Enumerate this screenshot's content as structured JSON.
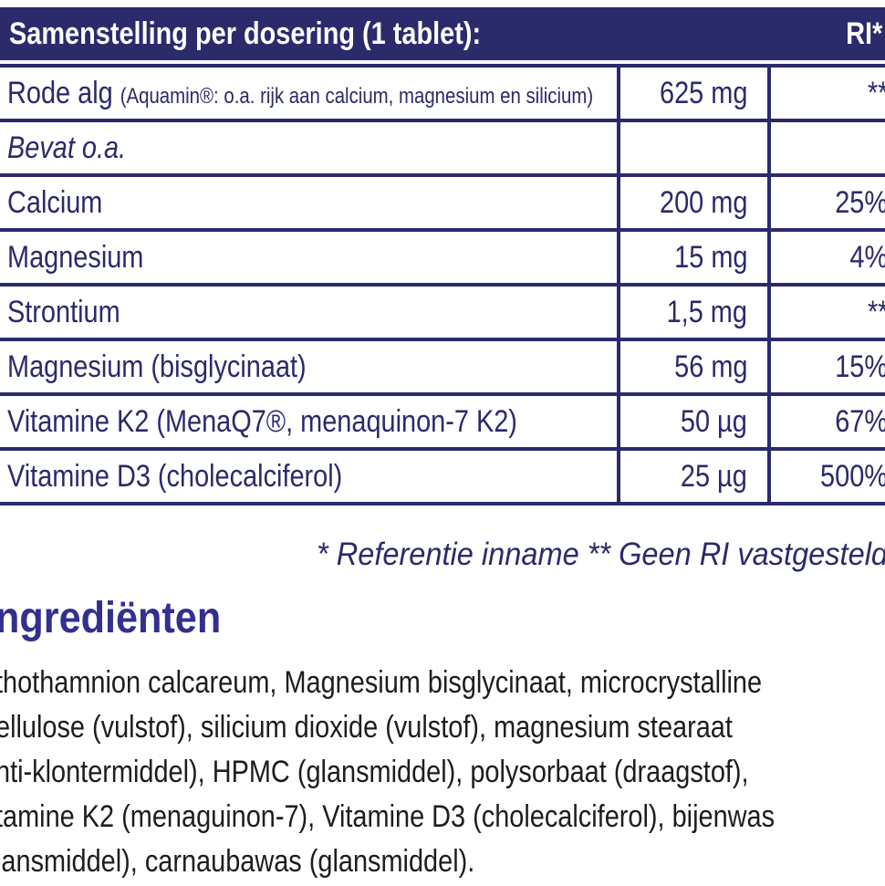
{
  "colors": {
    "indigo_band": "#2b2a6b",
    "table_border": "#2b2a6b",
    "table_text": "#2b2a6b",
    "heading_blue": "#32308f",
    "body_text": "#1d1d1b",
    "header_text": "#ffffff"
  },
  "table": {
    "header": {
      "title": "Samenstelling per dosering (1 tablet):",
      "ri_label": "RI*"
    },
    "rows": [
      {
        "name": "Rode alg ",
        "name_note": "(Aquamin®: o.a. rijk aan calcium, magnesium en silicium)",
        "amount": "625 mg",
        "ri": "**"
      },
      {
        "name": "Bevat o.a.",
        "name_note": "",
        "amount": "",
        "ri": ""
      },
      {
        "name": "Calcium",
        "name_note": "",
        "amount": "200 mg",
        "ri": "25%"
      },
      {
        "name": "Magnesium",
        "name_note": "",
        "amount": "15 mg",
        "ri": "4%"
      },
      {
        "name": "Strontium",
        "name_note": "",
        "amount": "1,5 mg",
        "ri": "**"
      },
      {
        "name": "Magnesium (bisglycinaat)",
        "name_note": "",
        "amount": "56 mg",
        "ri": "15%"
      },
      {
        "name": "Vitamine K2 (MenaQ7®, menaquinon-7 K2)",
        "name_note": "",
        "amount": "50 µg",
        "ri": "67%"
      },
      {
        "name": "Vitamine D3 (cholecalciferol)",
        "name_note": "",
        "amount": "25 µg",
        "ri": "500%"
      }
    ],
    "footnote": "* Referentie inname   ** Geen RI vastgesteld"
  },
  "ingredients": {
    "heading": "ngrediënten",
    "lines": [
      "thothamnion calcareum, Magnesium bisglycinaat, microcrystalline",
      "ellulose (vulstof), silicium dioxide (vulstof), magnesium stearaat",
      "nti-klontermiddel), HPMC (glansmiddel), polysorbaat (draagstof),",
      "tamine K2 (menaguinon-7), Vitamine D3 (cholecalciferol), bijenwas",
      "lansmiddel), carnaubawas (glansmiddel)."
    ]
  }
}
